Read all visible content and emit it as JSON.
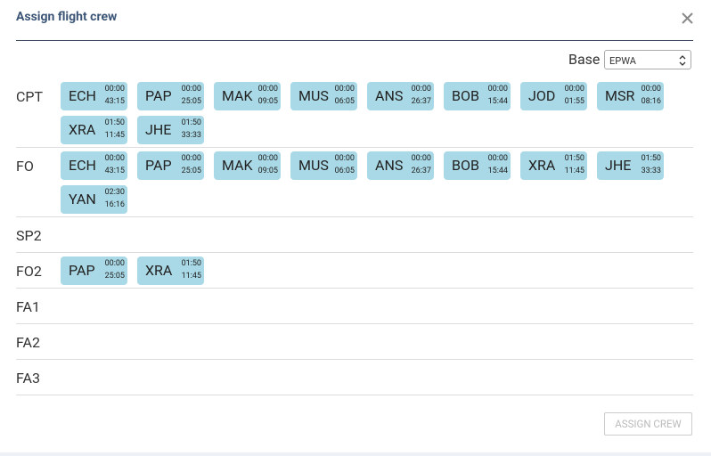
{
  "header": {
    "title": "Assign flight crew"
  },
  "base": {
    "label": "Base",
    "value": "EPWA"
  },
  "rows": [
    {
      "role": "CPT",
      "crew": [
        {
          "code": "ECH",
          "time1": "00:00",
          "time2": "43:15"
        },
        {
          "code": "PAP",
          "time1": "00:00",
          "time2": "25:05"
        },
        {
          "code": "MAK",
          "time1": "00:00",
          "time2": "09:05"
        },
        {
          "code": "MUS",
          "time1": "00:00",
          "time2": "06:05"
        },
        {
          "code": "ANS",
          "time1": "00:00",
          "time2": "26:37"
        },
        {
          "code": "BOB",
          "time1": "00:00",
          "time2": "15:44"
        },
        {
          "code": "JOD",
          "time1": "00:00",
          "time2": "01:55"
        },
        {
          "code": "MSR",
          "time1": "00:00",
          "time2": "08:16"
        },
        {
          "code": "XRA",
          "time1": "01:50",
          "time2": "11:45"
        },
        {
          "code": "JHE",
          "time1": "01:50",
          "time2": "33:33"
        }
      ]
    },
    {
      "role": "FO",
      "crew": [
        {
          "code": "ECH",
          "time1": "00:00",
          "time2": "43:15"
        },
        {
          "code": "PAP",
          "time1": "00:00",
          "time2": "25:05"
        },
        {
          "code": "MAK",
          "time1": "00:00",
          "time2": "09:05"
        },
        {
          "code": "MUS",
          "time1": "00:00",
          "time2": "06:05"
        },
        {
          "code": "ANS",
          "time1": "00:00",
          "time2": "26:37"
        },
        {
          "code": "BOB",
          "time1": "00:00",
          "time2": "15:44"
        },
        {
          "code": "XRA",
          "time1": "01:50",
          "time2": "11:45"
        },
        {
          "code": "JHE",
          "time1": "01:50",
          "time2": "33:33"
        },
        {
          "code": "YAN",
          "time1": "02:30",
          "time2": "16:16"
        }
      ]
    },
    {
      "role": "SP2",
      "crew": []
    },
    {
      "role": "FO2",
      "crew": [
        {
          "code": "PAP",
          "time1": "00:00",
          "time2": "25:05"
        },
        {
          "code": "XRA",
          "time1": "01:50",
          "time2": "11:45"
        }
      ]
    },
    {
      "role": "FA1",
      "crew": []
    },
    {
      "role": "FA2",
      "crew": []
    },
    {
      "role": "FA3",
      "crew": []
    }
  ],
  "footer": {
    "button": "ASSIGN CREW"
  }
}
